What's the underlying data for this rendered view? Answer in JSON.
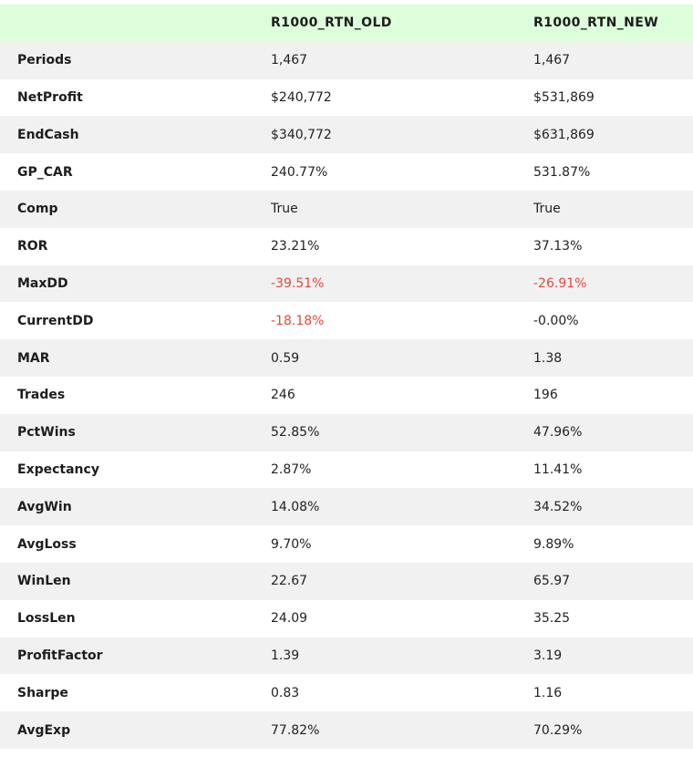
{
  "table": {
    "columns": [
      "",
      "R1000_RTN_OLD",
      "R1000_RTN_NEW"
    ],
    "rows": [
      {
        "metric": "Periods",
        "old": "1,467",
        "new": "1,467",
        "old_neg": false,
        "new_neg": false
      },
      {
        "metric": "NetProfit",
        "old": "$240,772",
        "new": "$531,869",
        "old_neg": false,
        "new_neg": false
      },
      {
        "metric": "EndCash",
        "old": "$340,772",
        "new": "$631,869",
        "old_neg": false,
        "new_neg": false
      },
      {
        "metric": "GP_CAR",
        "old": "240.77%",
        "new": "531.87%",
        "old_neg": false,
        "new_neg": false
      },
      {
        "metric": "Comp",
        "old": "True",
        "new": "True",
        "old_neg": false,
        "new_neg": false
      },
      {
        "metric": "ROR",
        "old": "23.21%",
        "new": "37.13%",
        "old_neg": false,
        "new_neg": false
      },
      {
        "metric": "MaxDD",
        "old": "-39.51%",
        "new": "-26.91%",
        "old_neg": true,
        "new_neg": true
      },
      {
        "metric": "CurrentDD",
        "old": "-18.18%",
        "new": "-0.00%",
        "old_neg": true,
        "new_neg": false
      },
      {
        "metric": "MAR",
        "old": "0.59",
        "new": "1.38",
        "old_neg": false,
        "new_neg": false
      },
      {
        "metric": "Trades",
        "old": "246",
        "new": "196",
        "old_neg": false,
        "new_neg": false
      },
      {
        "metric": "PctWins",
        "old": "52.85%",
        "new": "47.96%",
        "old_neg": false,
        "new_neg": false
      },
      {
        "metric": "Expectancy",
        "old": "2.87%",
        "new": "11.41%",
        "old_neg": false,
        "new_neg": false
      },
      {
        "metric": "AvgWin",
        "old": "14.08%",
        "new": "34.52%",
        "old_neg": false,
        "new_neg": false
      },
      {
        "metric": "AvgLoss",
        "old": "9.70%",
        "new": "9.89%",
        "old_neg": false,
        "new_neg": false
      },
      {
        "metric": "WinLen",
        "old": "22.67",
        "new": "65.97",
        "old_neg": false,
        "new_neg": false
      },
      {
        "metric": "LossLen",
        "old": "24.09",
        "new": "35.25",
        "old_neg": false,
        "new_neg": false
      },
      {
        "metric": "ProfitFactor",
        "old": "1.39",
        "new": "3.19",
        "old_neg": false,
        "new_neg": false
      },
      {
        "metric": "Sharpe",
        "old": "0.83",
        "new": "1.16",
        "old_neg": false,
        "new_neg": false
      },
      {
        "metric": "AvgExp",
        "old": "77.82%",
        "new": "70.29%",
        "old_neg": false,
        "new_neg": false
      }
    ]
  },
  "colors": {
    "header_bg": "#ddfedb",
    "stripe_bg": "#f1f1f1",
    "negative_text": "#e8473b"
  }
}
